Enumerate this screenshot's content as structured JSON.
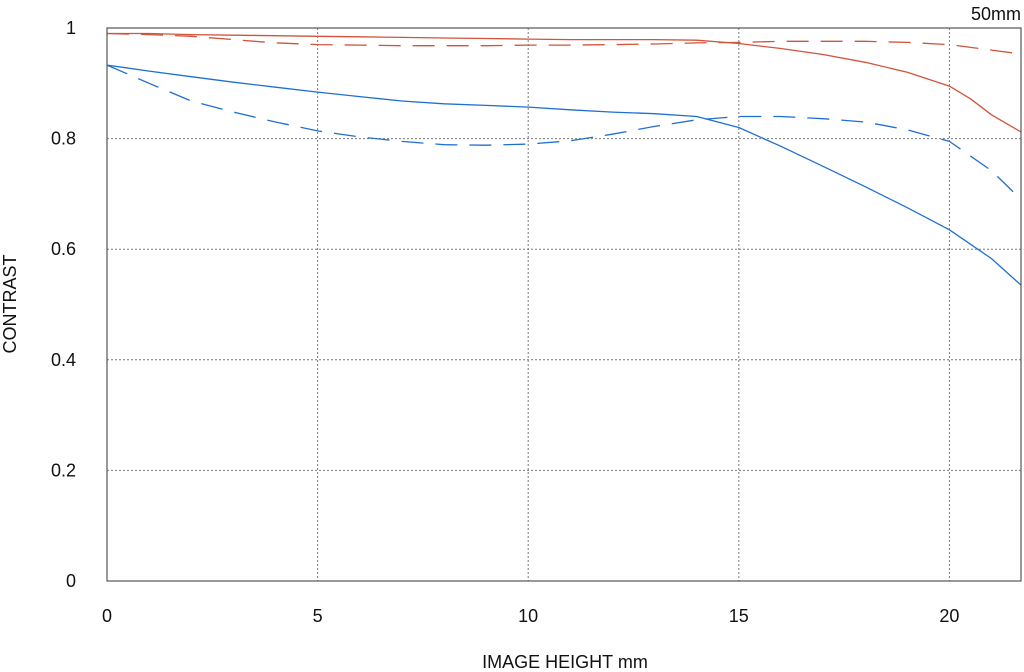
{
  "chart_data": {
    "type": "line",
    "corner_label": "50mm",
    "xlabel": "IMAGE HEIGHT  mm",
    "ylabel": "CONTRAST",
    "xlim": [
      0,
      21.7
    ],
    "ylim": [
      0,
      1
    ],
    "x_ticks": [
      0,
      5,
      10,
      15,
      20
    ],
    "y_ticks": [
      0,
      0.2,
      0.4,
      0.6,
      0.8,
      1
    ],
    "y_tick_labels": [
      "0",
      "0.2",
      "0.4",
      "0.6",
      "0.8",
      "1"
    ],
    "grid": true,
    "colors": {
      "red": "#d2543a",
      "blue": "#1f6fd1",
      "grid": "#7a7a7a",
      "frame": "#555555"
    },
    "series": [
      {
        "color": "red",
        "dash": "solid",
        "x": [
          0,
          1,
          2,
          3,
          4,
          5,
          6,
          7,
          8,
          9,
          10,
          11,
          12,
          13,
          14,
          15,
          16,
          17,
          18,
          19,
          20,
          20.5,
          21,
          21.7
        ],
        "y": [
          0.99,
          0.99,
          0.988,
          0.987,
          0.986,
          0.985,
          0.984,
          0.983,
          0.982,
          0.981,
          0.98,
          0.979,
          0.979,
          0.979,
          0.978,
          0.972,
          0.963,
          0.952,
          0.938,
          0.92,
          0.895,
          0.872,
          0.843,
          0.812
        ]
      },
      {
        "color": "red",
        "dash": "dashed",
        "x": [
          0,
          1,
          2,
          3,
          4,
          5,
          6,
          7,
          8,
          9,
          10,
          11,
          12,
          13,
          14,
          15,
          16,
          17,
          18,
          19,
          20,
          21,
          21.7
        ],
        "y": [
          0.99,
          0.988,
          0.985,
          0.979,
          0.973,
          0.97,
          0.969,
          0.968,
          0.968,
          0.968,
          0.969,
          0.969,
          0.97,
          0.971,
          0.973,
          0.974,
          0.976,
          0.976,
          0.976,
          0.974,
          0.97,
          0.96,
          0.953
        ]
      },
      {
        "color": "blue",
        "dash": "solid",
        "x": [
          0,
          1,
          2,
          3,
          4,
          5,
          6,
          7,
          8,
          9,
          10,
          11,
          12,
          13,
          14,
          15,
          16,
          17,
          18,
          19,
          20,
          21,
          21.7
        ],
        "y": [
          0.933,
          0.922,
          0.912,
          0.902,
          0.893,
          0.884,
          0.876,
          0.868,
          0.863,
          0.86,
          0.857,
          0.852,
          0.848,
          0.845,
          0.84,
          0.82,
          0.786,
          0.75,
          0.713,
          0.675,
          0.635,
          0.583,
          0.535
        ]
      },
      {
        "color": "blue",
        "dash": "dashed",
        "x": [
          0,
          1,
          2,
          3,
          4,
          5,
          6,
          7,
          8,
          9,
          10,
          11,
          12,
          13,
          14,
          15,
          16,
          17,
          18,
          19,
          20,
          21,
          21.7
        ],
        "y": [
          0.933,
          0.9,
          0.868,
          0.848,
          0.83,
          0.814,
          0.803,
          0.795,
          0.789,
          0.788,
          0.79,
          0.796,
          0.808,
          0.822,
          0.834,
          0.84,
          0.84,
          0.836,
          0.83,
          0.816,
          0.795,
          0.742,
          0.69
        ]
      }
    ]
  }
}
